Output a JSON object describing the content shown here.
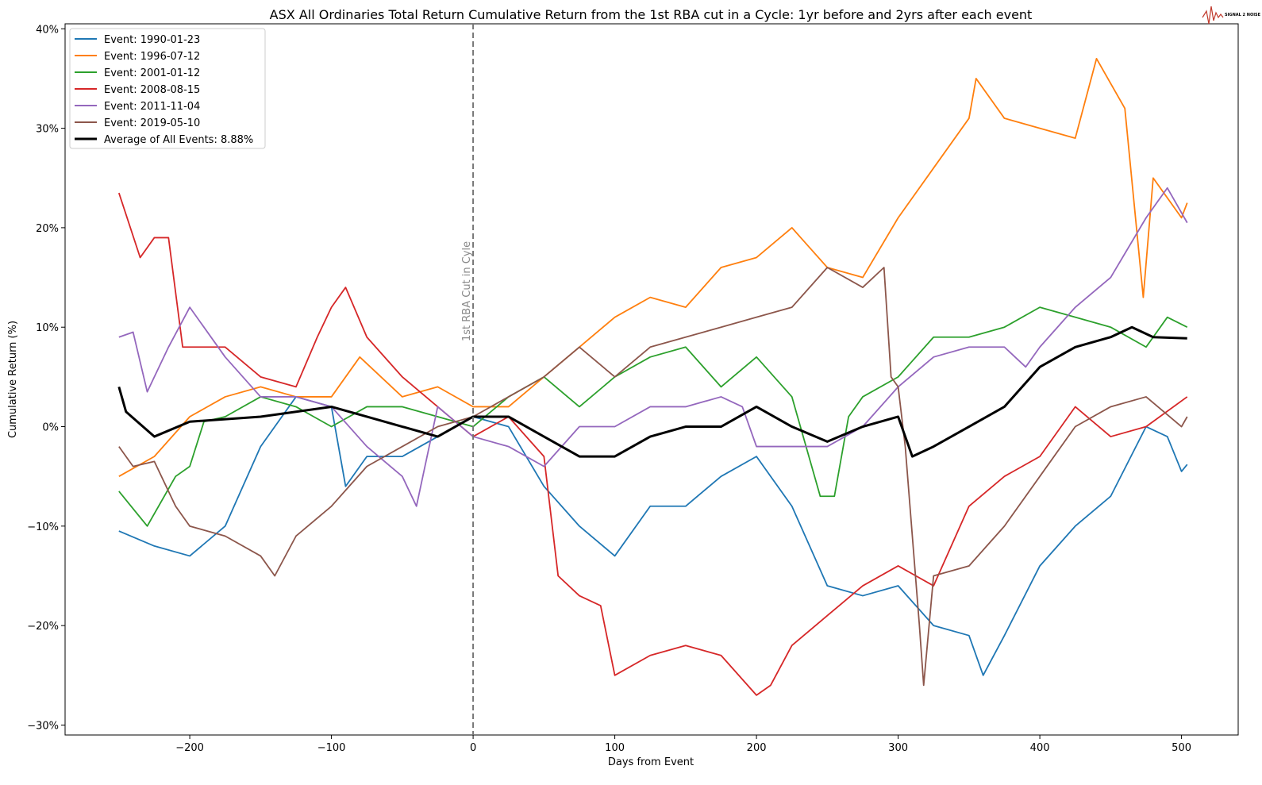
{
  "logo": {
    "text": "SIGNAL 2 NOISE",
    "color": "#c0392b"
  },
  "chart_data": {
    "type": "line",
    "title": "ASX All Ordinaries Total Return Cumulative Return from the 1st RBA cut in a Cycle: 1yr before and 2yrs after each event",
    "xlabel": "Days from Event",
    "ylabel": "Cumulative Return (%)",
    "xlim": [
      -288,
      540
    ],
    "ylim": [
      -31,
      40.5
    ],
    "xticks": [
      -200,
      -100,
      0,
      100,
      200,
      300,
      400,
      500
    ],
    "yticks": [
      -30,
      -20,
      -10,
      0,
      10,
      20,
      30,
      40
    ],
    "ytick_format": "%",
    "grid": false,
    "legend": "top-left",
    "annotation": {
      "x": 0,
      "text": "1st RBA Cut in Cyle",
      "style": "dashed",
      "color": "#777777"
    },
    "series": [
      {
        "name": "Event: 1990-01-23",
        "color": "#1f77b4",
        "points": [
          [
            -250,
            -10.5
          ],
          [
            -225,
            -12
          ],
          [
            -200,
            -13
          ],
          [
            -175,
            -10
          ],
          [
            -150,
            -2
          ],
          [
            -125,
            3
          ],
          [
            -100,
            2
          ],
          [
            -90,
            -6
          ],
          [
            -75,
            -3
          ],
          [
            -50,
            -3
          ],
          [
            -25,
            -1
          ],
          [
            0,
            1
          ],
          [
            25,
            0
          ],
          [
            50,
            -6
          ],
          [
            75,
            -10
          ],
          [
            100,
            -13
          ],
          [
            125,
            -8
          ],
          [
            150,
            -8
          ],
          [
            175,
            -5
          ],
          [
            200,
            -3
          ],
          [
            225,
            -8
          ],
          [
            250,
            -16
          ],
          [
            275,
            -17
          ],
          [
            300,
            -16
          ],
          [
            325,
            -20
          ],
          [
            350,
            -21
          ],
          [
            360,
            -25
          ],
          [
            375,
            -21
          ],
          [
            400,
            -14
          ],
          [
            425,
            -10
          ],
          [
            450,
            -7
          ],
          [
            475,
            0
          ],
          [
            490,
            -1
          ],
          [
            500,
            -4.5
          ],
          [
            504,
            -3.8
          ]
        ]
      },
      {
        "name": "Event: 1996-07-12",
        "color": "#ff7f0e",
        "points": [
          [
            -250,
            -5
          ],
          [
            -225,
            -3
          ],
          [
            -200,
            1
          ],
          [
            -175,
            3
          ],
          [
            -150,
            4
          ],
          [
            -125,
            3
          ],
          [
            -100,
            3
          ],
          [
            -80,
            7
          ],
          [
            -50,
            3
          ],
          [
            -25,
            4
          ],
          [
            0,
            2
          ],
          [
            25,
            2
          ],
          [
            50,
            5
          ],
          [
            75,
            8
          ],
          [
            100,
            11
          ],
          [
            125,
            13
          ],
          [
            150,
            12
          ],
          [
            175,
            16
          ],
          [
            200,
            17
          ],
          [
            225,
            20
          ],
          [
            250,
            16
          ],
          [
            275,
            15
          ],
          [
            300,
            21
          ],
          [
            325,
            26
          ],
          [
            350,
            31
          ],
          [
            355,
            35
          ],
          [
            375,
            31
          ],
          [
            400,
            30
          ],
          [
            425,
            29
          ],
          [
            440,
            37
          ],
          [
            460,
            32
          ],
          [
            473,
            13
          ],
          [
            480,
            25
          ],
          [
            500,
            21
          ],
          [
            504,
            22.5
          ]
        ]
      },
      {
        "name": "Event: 2001-01-12",
        "color": "#2ca02c",
        "points": [
          [
            -250,
            -6.5
          ],
          [
            -230,
            -10
          ],
          [
            -210,
            -5
          ],
          [
            -200,
            -4
          ],
          [
            -190,
            0.5
          ],
          [
            -175,
            1
          ],
          [
            -150,
            3
          ],
          [
            -125,
            2
          ],
          [
            -100,
            0
          ],
          [
            -75,
            2
          ],
          [
            -50,
            2
          ],
          [
            -25,
            1
          ],
          [
            0,
            0
          ],
          [
            25,
            3
          ],
          [
            50,
            5
          ],
          [
            75,
            2
          ],
          [
            100,
            5
          ],
          [
            125,
            7
          ],
          [
            150,
            8
          ],
          [
            175,
            4
          ],
          [
            200,
            7
          ],
          [
            225,
            3
          ],
          [
            245,
            -7
          ],
          [
            255,
            -7
          ],
          [
            265,
            1
          ],
          [
            275,
            3
          ],
          [
            300,
            5
          ],
          [
            325,
            9
          ],
          [
            350,
            9
          ],
          [
            375,
            10
          ],
          [
            400,
            12
          ],
          [
            425,
            11
          ],
          [
            450,
            10
          ],
          [
            475,
            8
          ],
          [
            490,
            11
          ],
          [
            504,
            10
          ]
        ]
      },
      {
        "name": "Event: 2008-08-15",
        "color": "#d62728",
        "points": [
          [
            -250,
            23.5
          ],
          [
            -235,
            17
          ],
          [
            -225,
            19
          ],
          [
            -215,
            19
          ],
          [
            -205,
            8
          ],
          [
            -200,
            8
          ],
          [
            -175,
            8
          ],
          [
            -150,
            5
          ],
          [
            -125,
            4
          ],
          [
            -110,
            9
          ],
          [
            -100,
            12
          ],
          [
            -90,
            14
          ],
          [
            -75,
            9
          ],
          [
            -50,
            5
          ],
          [
            -25,
            2
          ],
          [
            0,
            -1
          ],
          [
            25,
            1
          ],
          [
            50,
            -3
          ],
          [
            60,
            -15
          ],
          [
            75,
            -17
          ],
          [
            90,
            -18
          ],
          [
            100,
            -25
          ],
          [
            125,
            -23
          ],
          [
            150,
            -22
          ],
          [
            175,
            -23
          ],
          [
            200,
            -27
          ],
          [
            210,
            -26
          ],
          [
            225,
            -22
          ],
          [
            250,
            -19
          ],
          [
            275,
            -16
          ],
          [
            300,
            -14
          ],
          [
            325,
            -16
          ],
          [
            350,
            -8
          ],
          [
            375,
            -5
          ],
          [
            400,
            -3
          ],
          [
            425,
            2
          ],
          [
            450,
            -1
          ],
          [
            475,
            0
          ],
          [
            504,
            3
          ]
        ]
      },
      {
        "name": "Event: 2011-11-04",
        "color": "#9467bd",
        "points": [
          [
            -250,
            9
          ],
          [
            -240,
            9.5
          ],
          [
            -230,
            3.5
          ],
          [
            -215,
            8
          ],
          [
            -200,
            12
          ],
          [
            -175,
            7
          ],
          [
            -150,
            3
          ],
          [
            -125,
            3
          ],
          [
            -100,
            2
          ],
          [
            -75,
            -2
          ],
          [
            -50,
            -5
          ],
          [
            -40,
            -8
          ],
          [
            -25,
            2
          ],
          [
            0,
            -1
          ],
          [
            25,
            -2
          ],
          [
            50,
            -4
          ],
          [
            75,
            0
          ],
          [
            100,
            0
          ],
          [
            125,
            2
          ],
          [
            150,
            2
          ],
          [
            175,
            3
          ],
          [
            190,
            2
          ],
          [
            200,
            -2
          ],
          [
            225,
            -2
          ],
          [
            250,
            -2
          ],
          [
            275,
            0
          ],
          [
            300,
            4
          ],
          [
            325,
            7
          ],
          [
            350,
            8
          ],
          [
            375,
            8
          ],
          [
            390,
            6
          ],
          [
            400,
            8
          ],
          [
            425,
            12
          ],
          [
            450,
            15
          ],
          [
            475,
            21
          ],
          [
            490,
            24
          ],
          [
            504,
            20.5
          ]
        ]
      },
      {
        "name": "Event: 2019-05-10",
        "color": "#8c564b",
        "points": [
          [
            -250,
            -2
          ],
          [
            -240,
            -4
          ],
          [
            -225,
            -3.5
          ],
          [
            -210,
            -8
          ],
          [
            -200,
            -10
          ],
          [
            -175,
            -11
          ],
          [
            -150,
            -13
          ],
          [
            -140,
            -15
          ],
          [
            -125,
            -11
          ],
          [
            -100,
            -8
          ],
          [
            -75,
            -4
          ],
          [
            -50,
            -2
          ],
          [
            -25,
            0
          ],
          [
            0,
            1
          ],
          [
            25,
            3
          ],
          [
            50,
            5
          ],
          [
            75,
            8
          ],
          [
            100,
            5
          ],
          [
            125,
            8
          ],
          [
            150,
            9
          ],
          [
            175,
            10
          ],
          [
            200,
            11
          ],
          [
            225,
            12
          ],
          [
            250,
            16
          ],
          [
            275,
            14
          ],
          [
            290,
            16
          ],
          [
            295,
            5
          ],
          [
            300,
            4
          ],
          [
            305,
            -2
          ],
          [
            315,
            -20
          ],
          [
            318,
            -26
          ],
          [
            325,
            -15
          ],
          [
            350,
            -14
          ],
          [
            375,
            -10
          ],
          [
            400,
            -5
          ],
          [
            425,
            0
          ],
          [
            450,
            2
          ],
          [
            475,
            3
          ],
          [
            500,
            0
          ],
          [
            504,
            1
          ]
        ]
      },
      {
        "name": "Average of All Events: 8.88%",
        "color": "#000000",
        "bold": true,
        "points": [
          [
            -250,
            4
          ],
          [
            -245,
            1.5
          ],
          [
            -225,
            -1
          ],
          [
            -200,
            0.5
          ],
          [
            -150,
            1
          ],
          [
            -125,
            1.5
          ],
          [
            -100,
            2
          ],
          [
            -75,
            1
          ],
          [
            -50,
            0
          ],
          [
            -25,
            -1
          ],
          [
            0,
            1
          ],
          [
            25,
            1
          ],
          [
            50,
            -1
          ],
          [
            75,
            -3
          ],
          [
            100,
            -3
          ],
          [
            125,
            -1
          ],
          [
            150,
            0
          ],
          [
            175,
            0
          ],
          [
            200,
            2
          ],
          [
            225,
            0
          ],
          [
            250,
            -1.5
          ],
          [
            275,
            0
          ],
          [
            300,
            1
          ],
          [
            310,
            -3
          ],
          [
            325,
            -2
          ],
          [
            350,
            0
          ],
          [
            375,
            2
          ],
          [
            400,
            6
          ],
          [
            425,
            8
          ],
          [
            450,
            9
          ],
          [
            465,
            10
          ],
          [
            480,
            9
          ],
          [
            504,
            8.88
          ]
        ]
      }
    ]
  }
}
